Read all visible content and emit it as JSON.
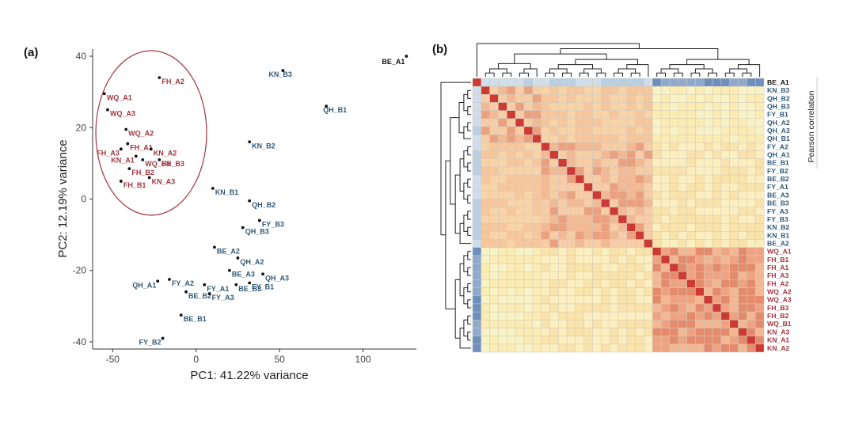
{
  "colors": {
    "red_group": "#a3343f",
    "blue_group": "#2f5877",
    "black_text": "#111111",
    "ellipse": "#a3343f",
    "axis": "#333333",
    "diag": "#cc3a33",
    "grid_line": "#d2c9b8"
  },
  "panel_labels": {
    "a": "(a)",
    "b": "(b)"
  },
  "chart_data": [
    {
      "type": "scatter",
      "panel": "(a)",
      "title": "",
      "xlabel": "PC1: 41.22% variance",
      "ylabel": "PC2: 12.19% variance",
      "xlim": [
        -62,
        132
      ],
      "ylim": [
        -42,
        42
      ],
      "xticks": [
        -50,
        0,
        50,
        100
      ],
      "yticks": [
        -40,
        -20,
        0,
        20,
        40
      ],
      "grid": false,
      "points": [
        {
          "label": "BE_A1",
          "x": 126,
          "y": 40,
          "group": "other"
        },
        {
          "label": "KN_B3",
          "x": 52,
          "y": 36,
          "group": "blue"
        },
        {
          "label": "QH_B1",
          "x": 78,
          "y": 26,
          "group": "blue"
        },
        {
          "label": "KN_B2",
          "x": 32,
          "y": 16,
          "group": "blue"
        },
        {
          "label": "KN_B1",
          "x": 10,
          "y": 3,
          "group": "blue"
        },
        {
          "label": "QH_B2",
          "x": 32,
          "y": -0.5,
          "group": "blue"
        },
        {
          "label": "FY_B3",
          "x": 38,
          "y": -6,
          "group": "blue"
        },
        {
          "label": "QH_B3",
          "x": 28,
          "y": -8,
          "group": "blue"
        },
        {
          "label": "BE_A2",
          "x": 11,
          "y": -13.5,
          "group": "blue"
        },
        {
          "label": "QH_A2",
          "x": 25,
          "y": -16.5,
          "group": "blue"
        },
        {
          "label": "BE_A3",
          "x": 20,
          "y": -20,
          "group": "blue"
        },
        {
          "label": "QH_A3",
          "x": 40,
          "y": -21,
          "group": "blue"
        },
        {
          "label": "FY_B1",
          "x": 32,
          "y": -23.5,
          "group": "blue"
        },
        {
          "label": "BE_B3",
          "x": 24,
          "y": -24,
          "group": "blue"
        },
        {
          "label": "FY_A2",
          "x": -16,
          "y": -22.5,
          "group": "blue"
        },
        {
          "label": "QH_A1",
          "x": -23,
          "y": -23,
          "group": "blue"
        },
        {
          "label": "FY_A1",
          "x": 5,
          "y": -24,
          "group": "blue"
        },
        {
          "label": "BE_B2",
          "x": -6,
          "y": -26,
          "group": "blue"
        },
        {
          "label": "FY_A3",
          "x": 8,
          "y": -26.5,
          "group": "blue"
        },
        {
          "label": "BE_B1",
          "x": -9,
          "y": -32.5,
          "group": "blue"
        },
        {
          "label": "FY_B2",
          "x": -20,
          "y": -39,
          "group": "blue"
        },
        {
          "label": "FH_A2",
          "x": -22,
          "y": 34,
          "group": "red"
        },
        {
          "label": "WQ_A1",
          "x": -55,
          "y": 29.5,
          "group": "red"
        },
        {
          "label": "WQ_A3",
          "x": -53,
          "y": 25,
          "group": "red"
        },
        {
          "label": "WQ_A2",
          "x": -42,
          "y": 19.5,
          "group": "red"
        },
        {
          "label": "FH_A1",
          "x": -41,
          "y": 15.5,
          "group": "red"
        },
        {
          "label": "FH_A3",
          "x": -45,
          "y": 14,
          "group": "red"
        },
        {
          "label": "KN_A2",
          "x": -27,
          "y": 14,
          "group": "red"
        },
        {
          "label": "KN_A1",
          "x": -36,
          "y": 12,
          "group": "red"
        },
        {
          "label": "WQ_B1",
          "x": -32,
          "y": 11,
          "group": "red"
        },
        {
          "label": "FH_B3",
          "x": -22,
          "y": 11,
          "group": "red"
        },
        {
          "label": "FH_B2",
          "x": -40,
          "y": 8.5,
          "group": "red"
        },
        {
          "label": "FH_B1",
          "x": -45,
          "y": 5,
          "group": "red"
        },
        {
          "label": "KN_A3",
          "x": -28,
          "y": 6,
          "group": "red"
        }
      ]
    },
    {
      "type": "heatmap",
      "panel": "(b)",
      "title": "",
      "legend_label": "Pearson correlation",
      "row_labels": [
        {
          "label": "BE_A1",
          "group": "other"
        },
        {
          "label": "KN_B3",
          "group": "blue"
        },
        {
          "label": "QH_B2",
          "group": "blue"
        },
        {
          "label": "QH_B3",
          "group": "blue"
        },
        {
          "label": "FY_B1",
          "group": "blue"
        },
        {
          "label": "QH_A2",
          "group": "blue"
        },
        {
          "label": "QH_A3",
          "group": "blue"
        },
        {
          "label": "QH_B1",
          "group": "blue"
        },
        {
          "label": "FY_A2",
          "group": "blue"
        },
        {
          "label": "QH_A1",
          "group": "blue"
        },
        {
          "label": "BE_B1",
          "group": "blue"
        },
        {
          "label": "FY_B2",
          "group": "blue"
        },
        {
          "label": "BE_B2",
          "group": "blue"
        },
        {
          "label": "FY_A1",
          "group": "blue"
        },
        {
          "label": "BE_A3",
          "group": "blue"
        },
        {
          "label": "BE_B3",
          "group": "blue"
        },
        {
          "label": "FY_A3",
          "group": "blue"
        },
        {
          "label": "FY_B3",
          "group": "blue"
        },
        {
          "label": "KN_B2",
          "group": "blue"
        },
        {
          "label": "KN_B1",
          "group": "blue"
        },
        {
          "label": "BE_A2",
          "group": "blue"
        },
        {
          "label": "WQ_A1",
          "group": "red"
        },
        {
          "label": "FH_B1",
          "group": "red"
        },
        {
          "label": "FH_A1",
          "group": "red"
        },
        {
          "label": "FH_A3",
          "group": "red"
        },
        {
          "label": "FH_A2",
          "group": "red"
        },
        {
          "label": "WQ_A2",
          "group": "red"
        },
        {
          "label": "WQ_A3",
          "group": "red"
        },
        {
          "label": "FH_B3",
          "group": "red"
        },
        {
          "label": "FH_B2",
          "group": "red"
        },
        {
          "label": "WQ_B1",
          "group": "red"
        },
        {
          "label": "KN_A3",
          "group": "red"
        },
        {
          "label": "KN_A1",
          "group": "red"
        },
        {
          "label": "KN_A2",
          "group": "red"
        }
      ],
      "clusters": [
        {
          "name": "outlier",
          "start": 0,
          "end": 0
        },
        {
          "name": "blue_cluster_1",
          "start": 1,
          "end": 7
        },
        {
          "name": "blue_cluster_2",
          "start": 8,
          "end": 20
        },
        {
          "name": "red_cluster",
          "start": 21,
          "end": 33
        }
      ],
      "value_scale": [
        "low (blue)",
        "mid (yellow)",
        "high (red)"
      ]
    }
  ]
}
